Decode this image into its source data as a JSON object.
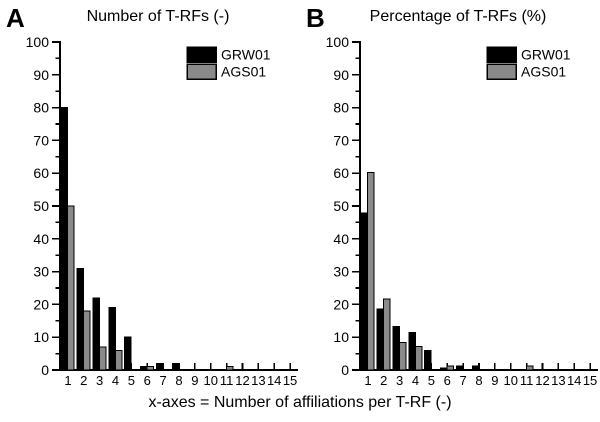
{
  "figure": {
    "caption": "x-axes = Number of affiliations per T-RF (-)",
    "background": "#ffffff",
    "axis_color": "#000000",
    "text_color": "#000000"
  },
  "chart_data": [
    {
      "panel_label": "A",
      "type": "bar",
      "title": "Number of T-RFs (-)",
      "categories": [
        "1",
        "2",
        "3",
        "4",
        "5",
        "6",
        "7",
        "8",
        "9",
        "10",
        "11",
        "12",
        "13",
        "14",
        "15"
      ],
      "series": [
        {
          "name": "GRW01",
          "color": "#000000",
          "values": [
            80,
            31,
            22,
            19,
            10,
            1,
            2,
            2,
            0,
            0,
            0,
            0,
            0,
            0,
            0
          ]
        },
        {
          "name": "AGS01",
          "color": "#8a8a8a",
          "values": [
            50,
            18,
            7,
            6,
            0,
            1,
            0,
            0,
            0,
            0,
            1,
            0,
            0,
            0,
            0
          ]
        }
      ],
      "xlabel": "",
      "ylabel": "",
      "ylim": [
        0,
        100
      ],
      "ytick_step": 10,
      "yminor_step": 5,
      "grid": false,
      "legend_position": "top-right"
    },
    {
      "panel_label": "B",
      "type": "bar",
      "title": "Percentage of T-RFs (%)",
      "categories": [
        "1",
        "2",
        "3",
        "4",
        "5",
        "6",
        "7",
        "8",
        "9",
        "10",
        "11",
        "12",
        "13",
        "14",
        "15"
      ],
      "series": [
        {
          "name": "GRW01",
          "color": "#000000",
          "values": [
            47.9,
            18.6,
            13.2,
            11.4,
            6.0,
            0.6,
            1.2,
            1.2,
            0,
            0,
            0,
            0,
            0,
            0,
            0
          ]
        },
        {
          "name": "AGS01",
          "color": "#8a8a8a",
          "values": [
            60.2,
            21.7,
            8.4,
            7.2,
            0,
            1.2,
            0,
            0,
            0,
            0,
            1.2,
            0,
            0,
            0,
            0
          ]
        }
      ],
      "xlabel": "",
      "ylabel": "",
      "ylim": [
        0,
        100
      ],
      "ytick_step": 10,
      "yminor_step": 5,
      "grid": false,
      "legend_position": "top-right"
    }
  ]
}
